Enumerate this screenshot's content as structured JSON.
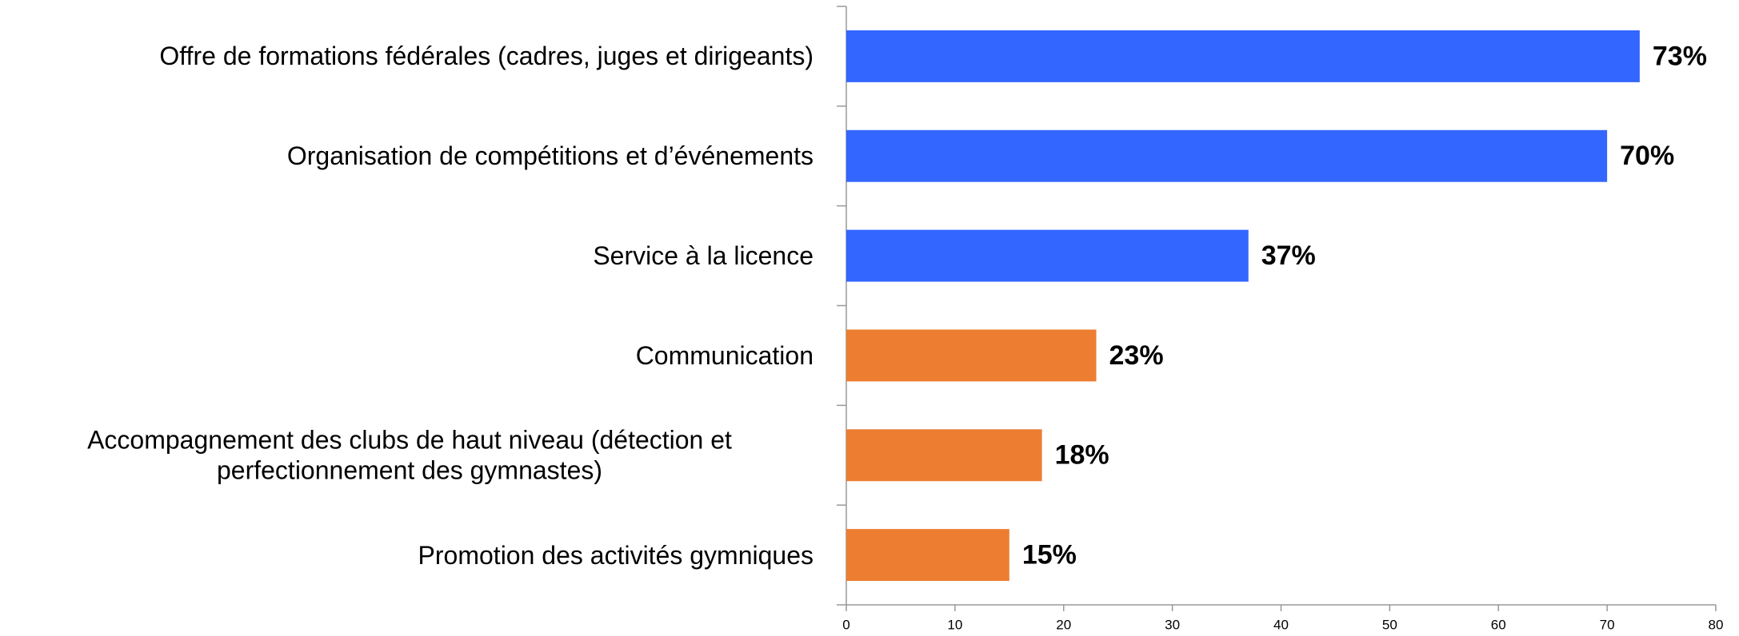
{
  "chart_data": {
    "type": "barh",
    "categories": [
      "Offre de formations fédérales (cadres, juges et dirigeants)",
      "Organisation de compétitions et d’événements",
      "Service à la licence",
      "Communication",
      "Accompagnement des clubs de haut niveau (détection et perfectionnement des gymnastes)",
      "Promotion des activités gymniques"
    ],
    "values": [
      73,
      70,
      37,
      23,
      18,
      15
    ],
    "value_labels": [
      "73%",
      "70%",
      "37%",
      "23%",
      "18%",
      "15%"
    ],
    "colors": [
      "#3366ff",
      "#3366ff",
      "#3366ff",
      "#ed7d31",
      "#ed7d31",
      "#ed7d31"
    ],
    "xlim": [
      0,
      80
    ],
    "xticks": [
      0,
      10,
      20,
      30,
      40,
      50,
      60,
      70,
      80
    ],
    "grid": false
  }
}
